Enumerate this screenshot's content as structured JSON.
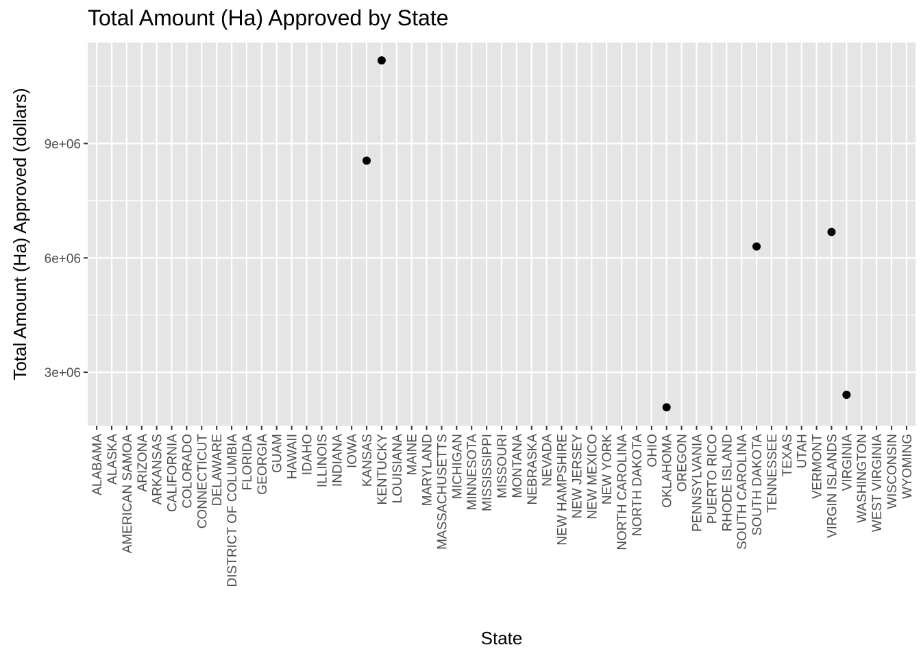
{
  "chart_data": {
    "type": "scatter",
    "title": "Total Amount (Ha) Approved by State",
    "xlabel": "State",
    "ylabel": "Total Amount (Ha) Approved (dollars)",
    "categories": [
      "ALABAMA",
      "ALASKA",
      "AMERICAN SAMOA",
      "ARIZONA",
      "ARKANSAS",
      "CALIFORNIA",
      "COLORADO",
      "CONNECTICUT",
      "DELAWARE",
      "DISTRICT OF COLUMBIA",
      "FLORIDA",
      "GEORGIA",
      "GUAM",
      "HAWAII",
      "IDAHO",
      "ILLINOIS",
      "INDIANA",
      "IOWA",
      "KANSAS",
      "KENTUCKY",
      "LOUISIANA",
      "MAINE",
      "MARYLAND",
      "MASSACHUSETTS",
      "MICHIGAN",
      "MINNESOTA",
      "MISSISSIPPI",
      "MISSOURI",
      "MONTANA",
      "NEBRASKA",
      "NEVADA",
      "NEW HAMPSHIRE",
      "NEW JERSEY",
      "NEW MEXICO",
      "NEW YORK",
      "NORTH CAROLINA",
      "NORTH DAKOTA",
      "OHIO",
      "OKLAHOMA",
      "OREGON",
      "PENNSYLVANIA",
      "PUERTO RICO",
      "RHODE ISLAND",
      "SOUTH CAROLINA",
      "SOUTH DAKOTA",
      "TENNESSEE",
      "TEXAS",
      "UTAH",
      "VERMONT",
      "VIRGIN ISLANDS",
      "VIRGINIA",
      "WASHINGTON",
      "WEST VIRGINIA",
      "WISCONSIN",
      "WYOMING"
    ],
    "points": [
      {
        "x": "KANSAS",
        "y": 8550000
      },
      {
        "x": "KENTUCKY",
        "y": 11180000
      },
      {
        "x": "OKLAHOMA",
        "y": 2080000
      },
      {
        "x": "SOUTH DAKOTA",
        "y": 6300000
      },
      {
        "x": "VIRGIN ISLANDS",
        "y": 6680000
      },
      {
        "x": "VIRGINIA",
        "y": 2410000
      }
    ],
    "y_ticks": [
      3000000,
      6000000,
      9000000
    ],
    "y_tick_labels": [
      "3e+06",
      "6e+06",
      "9e+06"
    ],
    "ylim": [
      1600000,
      11650000
    ],
    "grid": true,
    "colors": {
      "panel": "#e5e5e5",
      "grid": "#ffffff",
      "point": "#000000",
      "tick_label": "#4d4d4d"
    }
  }
}
